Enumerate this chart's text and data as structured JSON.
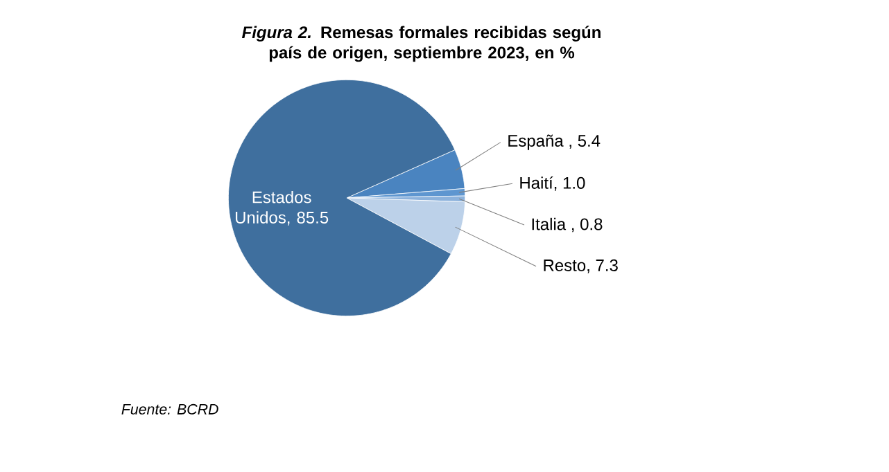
{
  "chart_data": {
    "type": "pie",
    "title": "*Figura 2.* Remesas formales recibidas según país de origen, septiembre 2023, en %",
    "categories": [
      "España",
      "Haití",
      "Italia",
      "Resto",
      "Estados Unidos"
    ],
    "values": [
      5.4,
      1.0,
      0.8,
      7.3,
      85.5
    ],
    "colors": [
      "#4a84c0",
      "#5e96d0",
      "#8cb2dc",
      "#bcd1e9",
      "#3f6f9e"
    ],
    "value_labels": [
      " , 5.4",
      ", 1.0",
      " , 0.8",
      ", 7.3",
      ", 85.5"
    ],
    "annotations": [
      "Fuente: BCRD"
    ]
  }
}
